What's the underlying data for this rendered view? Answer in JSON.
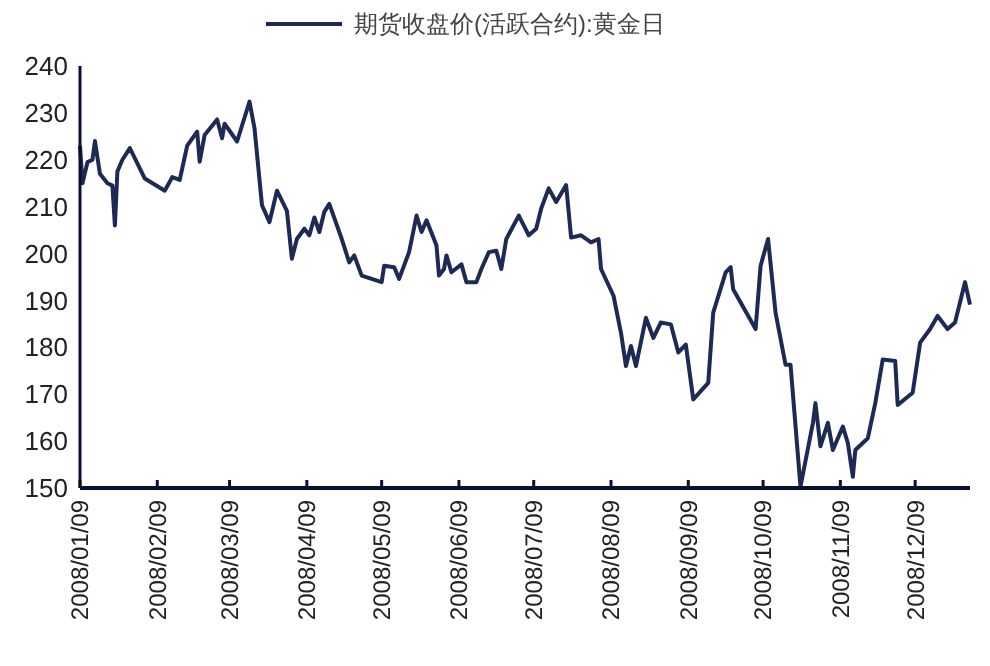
{
  "chart_data": {
    "type": "line",
    "legend": "top",
    "grid": false,
    "line_style": "solid",
    "xlim": [
      "2008-01-09",
      "2008-12-31"
    ],
    "xticks": [
      {
        "value": "2008-01-09",
        "label": "2008/01/09"
      },
      {
        "value": "2008-02-09",
        "label": "2008/02/09"
      },
      {
        "value": "2008-03-09",
        "label": "2008/03/09"
      },
      {
        "value": "2008-04-09",
        "label": "2008/04/09"
      },
      {
        "value": "2008-05-09",
        "label": "2008/05/09"
      },
      {
        "value": "2008-06-09",
        "label": "2008/06/09"
      },
      {
        "value": "2008-07-09",
        "label": "2008/07/09"
      },
      {
        "value": "2008-08-09",
        "label": "2008/08/09"
      },
      {
        "value": "2008-09-09",
        "label": "2008/09/09"
      },
      {
        "value": "2008-10-09",
        "label": "2008/10/09"
      },
      {
        "value": "2008-11-09",
        "label": "2008/11/09"
      },
      {
        "value": "2008-12-09",
        "label": "2008/12/09"
      }
    ],
    "ylim": [
      150,
      240
    ],
    "yticks": [
      150,
      160,
      170,
      180,
      190,
      200,
      210,
      220,
      230,
      240
    ],
    "x": [
      "2008-01-09",
      "2008-01-10",
      "2008-01-12",
      "2008-01-14",
      "2008-01-15",
      "2008-01-17",
      "2008-01-20",
      "2008-01-22",
      "2008-01-23",
      "2008-01-24",
      "2008-01-26",
      "2008-01-29",
      "2008-02-04",
      "2008-02-12",
      "2008-02-15",
      "2008-02-18",
      "2008-02-21",
      "2008-02-23",
      "2008-02-25",
      "2008-02-26",
      "2008-02-28",
      "2008-03-04",
      "2008-03-06",
      "2008-03-07",
      "2008-03-12",
      "2008-03-17",
      "2008-03-19",
      "2008-03-22",
      "2008-03-25",
      "2008-03-28",
      "2008-04-01",
      "2008-04-03",
      "2008-04-05",
      "2008-04-08",
      "2008-04-10",
      "2008-04-12",
      "2008-04-14",
      "2008-04-16",
      "2008-04-18",
      "2008-04-23",
      "2008-04-26",
      "2008-04-28",
      "2008-05-01",
      "2008-05-09",
      "2008-05-10",
      "2008-05-14",
      "2008-05-16",
      "2008-05-20",
      "2008-05-23",
      "2008-05-25",
      "2008-05-27",
      "2008-05-31",
      "2008-06-01",
      "2008-06-03",
      "2008-06-04",
      "2008-06-06",
      "2008-06-10",
      "2008-06-12",
      "2008-06-16",
      "2008-06-18",
      "2008-06-21",
      "2008-06-24",
      "2008-06-26",
      "2008-06-28",
      "2008-07-03",
      "2008-07-07",
      "2008-07-10",
      "2008-07-12",
      "2008-07-15",
      "2008-07-18",
      "2008-07-22",
      "2008-07-24",
      "2008-07-28",
      "2008-08-01",
      "2008-08-04",
      "2008-08-05",
      "2008-08-10",
      "2008-08-13",
      "2008-08-15",
      "2008-08-17",
      "2008-08-19",
      "2008-08-23",
      "2008-08-26",
      "2008-08-29",
      "2008-09-02",
      "2008-09-05",
      "2008-09-08",
      "2008-09-11",
      "2008-09-17",
      "2008-09-19",
      "2008-09-24",
      "2008-09-26",
      "2008-09-27",
      "2008-10-06",
      "2008-10-08",
      "2008-10-11",
      "2008-10-14",
      "2008-10-18",
      "2008-10-20",
      "2008-10-24",
      "2008-10-29",
      "2008-10-30",
      "2008-11-01",
      "2008-11-04",
      "2008-11-06",
      "2008-11-10",
      "2008-11-12",
      "2008-11-14",
      "2008-11-15",
      "2008-11-20",
      "2008-11-23",
      "2008-11-26",
      "2008-12-01",
      "2008-12-02",
      "2008-12-08",
      "2008-12-11",
      "2008-12-15",
      "2008-12-18",
      "2008-12-22",
      "2008-12-25",
      "2008-12-29",
      "2008-12-31"
    ],
    "series": [
      {
        "name": "期货收盘价(活跃合约):黄金日",
        "color": "#1c2a55",
        "values": [
          223,
          215,
          219.5,
          220,
          224,
          217,
          215,
          214.5,
          206,
          217.5,
          220,
          222.5,
          216,
          213.4,
          216.3,
          215.7,
          223,
          224.5,
          226,
          219.6,
          225.3,
          228.6,
          224.6,
          227.7,
          223.9,
          232.4,
          226.7,
          210.3,
          206.7,
          213.4,
          209.1,
          198.9,
          203.1,
          205.3,
          203.9,
          207.7,
          204.6,
          208.9,
          210.6,
          203.1,
          198.1,
          199.6,
          195.3,
          193.9,
          197.4,
          197.1,
          194.6,
          200.3,
          208.1,
          204.6,
          207.1,
          201.7,
          195.3,
          196.7,
          199.6,
          196,
          197.7,
          193.9,
          193.9,
          196.7,
          200.3,
          200.6,
          196.7,
          203.1,
          208.1,
          203.9,
          205.3,
          209.6,
          213.9,
          211,
          214.6,
          203.4,
          203.9,
          202.4,
          203.1,
          196.7,
          191,
          183.1,
          176,
          180.3,
          176,
          186.3,
          182,
          185.3,
          184.9,
          178.9,
          180.6,
          168.9,
          172.4,
          187.4,
          196,
          197.1,
          192.4,
          183.9,
          197.4,
          203.1,
          187.4,
          176.3,
          176.3,
          150.3,
          163.9,
          168.1,
          158.9,
          163.9,
          158.1,
          163.1,
          159.6,
          152.4,
          158.1,
          160.6,
          168.1,
          177.4,
          177.1,
          167.7,
          170.3,
          181,
          183.9,
          186.7,
          183.9,
          185.3,
          193.9,
          189.1
        ]
      }
    ]
  }
}
